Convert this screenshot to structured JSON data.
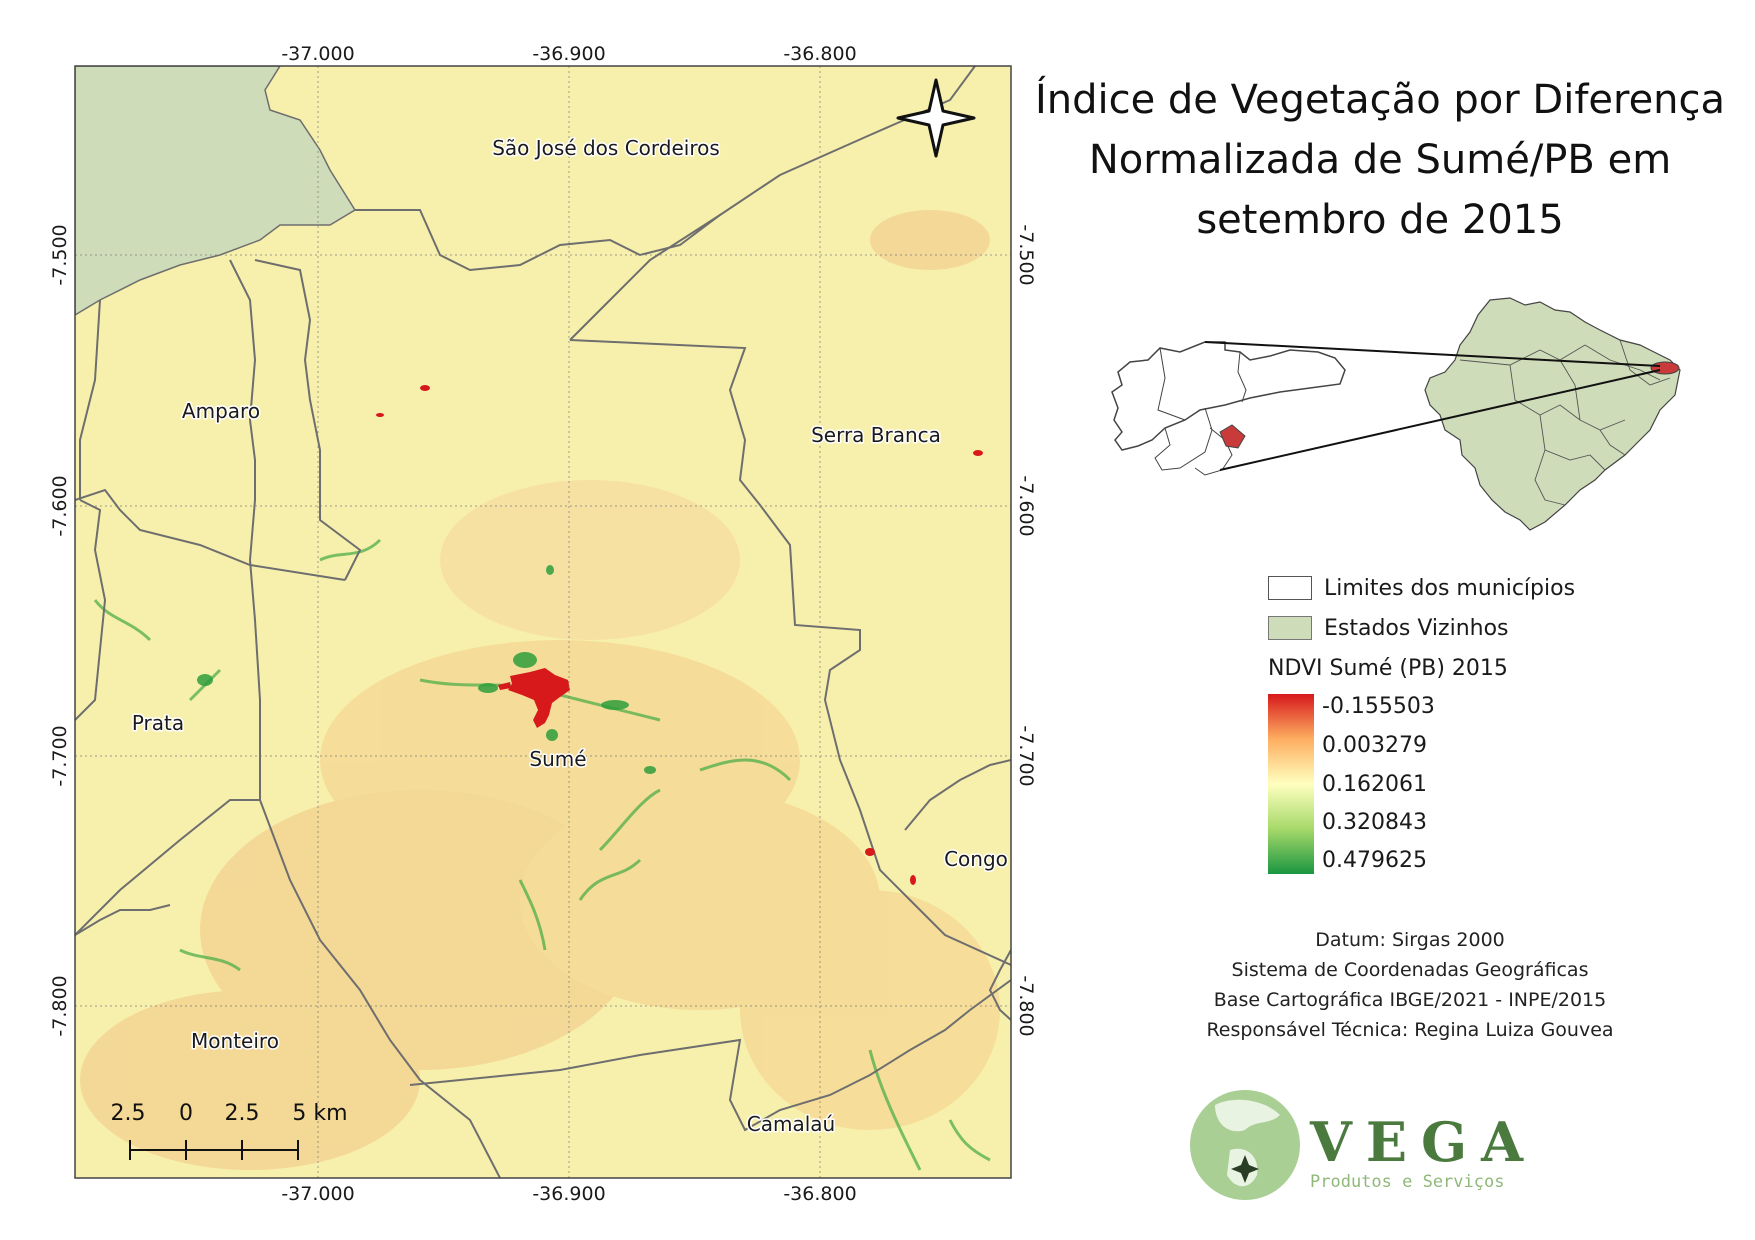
{
  "map": {
    "top_ticks": [
      "-37.000",
      "-36.900",
      "-36.800"
    ],
    "bottom_ticks": [
      "-37.000",
      "-36.900",
      "-36.800"
    ],
    "left_ticks": [
      "-7.500",
      "-7.600",
      "-7.700",
      "-7.800"
    ],
    "right_ticks": [
      "-7.500",
      "-7.600",
      "-7.700",
      "-7.800"
    ],
    "places": {
      "sao_jose": "São José dos Cordeiros",
      "amparo": "Amparo",
      "serra_branca": "Serra Branca",
      "prata": "Prata",
      "sume": "Sumé",
      "congo": "Congo",
      "monteiro": "Monteiro",
      "camalau": "Camalaú"
    },
    "scale": {
      "ticks": [
        "2.5",
        "0",
        "2.5",
        "5 km"
      ]
    },
    "colors": {
      "neighbor_state": "#cfdcb9",
      "base": "#f7f0ad",
      "reservoir": "#d7191c",
      "vegetation": "#1a9641",
      "boundary": "#6e6e6e"
    }
  },
  "title": {
    "line1": "Índice de Vegetação por Diferença",
    "line2": "Normalizada de Sumé/PB em",
    "line3": "setembro de 2015"
  },
  "legend": {
    "limits_label": "Limites dos municípios",
    "states_label": "Estados Vizinhos",
    "ndvi_title": "NDVI Sumé (PB) 2015",
    "ndvi_values": [
      "-0.155503",
      "0.003279",
      "0.162061",
      "0.320843",
      "0.479625"
    ]
  },
  "credits": {
    "line1": "Datum: Sirgas 2000",
    "line2": "Sistema de Coordenadas Geográficas",
    "line3": "Base Cartográfica IBGE/2021 - INPE/2015",
    "line4": "Responsável Técnica: Regina Luiza Gouvea"
  },
  "logo": {
    "name": "VEGA",
    "tagline": "Produtos e Serviços"
  }
}
